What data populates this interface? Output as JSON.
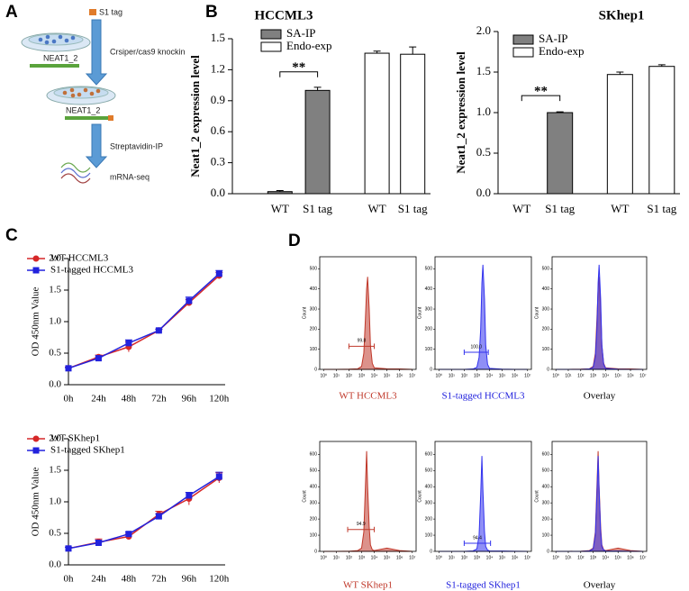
{
  "panel_labels": [
    "A",
    "B",
    "C",
    "D"
  ],
  "diagram": {
    "tag_label": "S1 tag",
    "step1": "Crsiper/cas9 knockin",
    "gene1": "NEAT1_2",
    "gene2": "NEAT1_2",
    "step2": "Streptavidin-IP",
    "step3": "mRNA-seq"
  },
  "chart_data": [
    {
      "type": "bar",
      "title": "HCCML3",
      "ylabel": "Neat1_2 expression level",
      "categories": [
        "WT",
        "S1 tag",
        "WT",
        "S1 tag"
      ],
      "series": [
        {
          "name": "SA-IP",
          "color": "#808080",
          "values": [
            0.02,
            1.0,
            null,
            null
          ],
          "errors": [
            0.01,
            0.03,
            null,
            null
          ]
        },
        {
          "name": "Endo-exp",
          "color": "#ffffff",
          "values": [
            null,
            null,
            1.36,
            1.35
          ],
          "errors": [
            null,
            null,
            0.02,
            0.07
          ]
        }
      ],
      "ylim": [
        0,
        1.5
      ],
      "yticks": [
        {
          "value": 0,
          "label": "0.0"
        },
        0.3,
        0.6,
        0.9,
        1.2,
        1.5
      ],
      "annotation": "**"
    },
    {
      "type": "bar",
      "title": "SKhep1",
      "ylabel": "Neat1_2 expression level",
      "categories": [
        "WT",
        "S1 tag",
        "WT",
        "S1 tag"
      ],
      "series": [
        {
          "name": "SA-IP",
          "color": "#808080",
          "values": [
            0.0,
            1.0,
            null,
            null
          ],
          "errors": [
            0.0,
            0.01,
            null,
            null
          ]
        },
        {
          "name": "Endo-exp",
          "color": "#ffffff",
          "values": [
            null,
            null,
            1.47,
            1.57
          ],
          "errors": [
            null,
            null,
            0.03,
            0.02
          ]
        }
      ],
      "ylim": [
        0,
        2
      ],
      "yticks": [
        {
          "value": 0,
          "label": "0.0"
        },
        0.5,
        {
          "value": 1,
          "label": "1.0"
        },
        1.5,
        {
          "value": 2,
          "label": "2.0"
        }
      ],
      "annotation": "**"
    },
    {
      "type": "line",
      "ylabel": "OD 450nm Value",
      "categories": [
        "0h",
        "24h",
        "48h",
        "72h",
        "96h",
        "120h"
      ],
      "series": [
        {
          "name": "WT HCCML3",
          "color": "#d62728",
          "values": [
            0.26,
            0.44,
            0.6,
            0.86,
            1.3,
            1.73
          ],
          "errors": [
            0.02,
            0.03,
            0.08,
            0.02,
            0.05,
            0.05
          ]
        },
        {
          "name": "S1-tagged HCCML3",
          "color": "#2222dd",
          "values": [
            0.26,
            0.42,
            0.66,
            0.86,
            1.33,
            1.76
          ],
          "errors": [
            0.01,
            0.02,
            0.05,
            0.02,
            0.06,
            0.05
          ]
        }
      ],
      "ylim": [
        0,
        2
      ],
      "yticks": [
        {
          "value": 0,
          "label": "0.0"
        },
        0.5,
        {
          "value": 1,
          "label": "1.0"
        },
        1.5,
        {
          "value": 2,
          "label": "2.0"
        }
      ]
    },
    {
      "type": "line",
      "ylabel": "OD 450nm Value",
      "categories": [
        "0h",
        "24h",
        "48h",
        "72h",
        "96h",
        "120h"
      ],
      "series": [
        {
          "name": "WT SKhep1",
          "color": "#d62728",
          "values": [
            0.26,
            0.36,
            0.45,
            0.8,
            1.05,
            1.38
          ],
          "errors": [
            0.02,
            0.05,
            0.04,
            0.05,
            0.1,
            0.08
          ]
        },
        {
          "name": "S1-tagged SKhep1",
          "color": "#2222dd",
          "values": [
            0.26,
            0.35,
            0.49,
            0.77,
            1.1,
            1.4
          ],
          "errors": [
            0.02,
            0.04,
            0.03,
            0.04,
            0.05,
            0.07
          ]
        }
      ],
      "ylim": [
        0,
        2
      ],
      "yticks": [
        {
          "value": 0,
          "label": "0.0"
        },
        0.5,
        {
          "value": 1,
          "label": "1.0"
        },
        1.5,
        {
          "value": 2,
          "label": "2.0"
        }
      ]
    },
    {
      "type": "flow",
      "caption": "WT HCCML3",
      "caption_color": "#c0392b",
      "ylabel": "Count",
      "xscale": "log",
      "x": [
        1,
        10,
        100,
        500,
        1000,
        1500,
        2000,
        2500,
        3000,
        4000,
        5000,
        7000,
        10000,
        100000,
        1000000,
        10000000
      ],
      "series": [
        {
          "color": "#c0392b",
          "values": [
            0,
            0,
            1,
            3,
            15,
            80,
            250,
            400,
            460,
            300,
            120,
            30,
            8,
            3,
            2,
            0
          ]
        }
      ],
      "gate": {
        "label": "99.8",
        "range": [
          100,
          10000
        ],
        "level": 115
      },
      "xlim": [
        0.5,
        20000000
      ],
      "xticks": [
        {
          "value": 1,
          "label": "10⁰"
        },
        {
          "value": 10,
          "label": "10¹"
        },
        {
          "value": 100,
          "label": "10²"
        },
        {
          "value": 1000,
          "label": "10³"
        },
        {
          "value": 10000,
          "label": "10⁴"
        },
        {
          "value": 100000,
          "label": "10⁵"
        },
        {
          "value": 1000000,
          "label": "10⁶"
        },
        {
          "value": 10000000,
          "label": "10⁷"
        }
      ],
      "ylim": [
        0,
        560
      ],
      "yticks": [
        0,
        100,
        200,
        300,
        400,
        500
      ]
    },
    {
      "type": "flow",
      "caption": "S1-tagged HCCML3",
      "caption_color": "#2222dd",
      "ylabel": "Count",
      "xscale": "log",
      "x": [
        1,
        10,
        100,
        500,
        1000,
        1500,
        2000,
        2500,
        3000,
        4000,
        5000,
        7000,
        10000,
        100000,
        1000000,
        10000000
      ],
      "series": [
        {
          "color": "#3333ee",
          "values": [
            0,
            0,
            0,
            2,
            10,
            60,
            200,
            430,
            520,
            350,
            120,
            25,
            5,
            1,
            0,
            0
          ]
        }
      ],
      "gate": {
        "label": "100.0",
        "range": [
          100,
          8000
        ],
        "level": 85
      },
      "xlim": [
        0.5,
        20000000
      ],
      "xticks": [
        {
          "value": 1,
          "label": "10⁰"
        },
        {
          "value": 10,
          "label": "10¹"
        },
        {
          "value": 100,
          "label": "10²"
        },
        {
          "value": 1000,
          "label": "10³"
        },
        {
          "value": 10000,
          "label": "10⁴"
        },
        {
          "value": 100000,
          "label": "10⁵"
        },
        {
          "value": 1000000,
          "label": "10⁶"
        },
        {
          "value": 10000000,
          "label": "10⁷"
        }
      ],
      "ylim": [
        0,
        560
      ],
      "yticks": [
        0,
        100,
        200,
        300,
        400,
        500
      ]
    },
    {
      "type": "flow",
      "caption": "Overlay",
      "caption_color": "#000000",
      "ylabel": "Count",
      "xscale": "log",
      "x": [
        1,
        10,
        100,
        500,
        1000,
        1500,
        2000,
        2500,
        3000,
        4000,
        5000,
        7000,
        10000,
        100000,
        1000000,
        10000000
      ],
      "series": [
        {
          "color": "#c0392b",
          "values": [
            0,
            0,
            1,
            3,
            15,
            80,
            250,
            400,
            460,
            300,
            120,
            30,
            8,
            3,
            2,
            0
          ]
        },
        {
          "color": "#3333ee",
          "values": [
            0,
            0,
            0,
            2,
            10,
            60,
            200,
            430,
            520,
            350,
            120,
            25,
            5,
            1,
            0,
            0
          ]
        }
      ],
      "xlim": [
        0.5,
        20000000
      ],
      "xticks": [
        {
          "value": 1,
          "label": "10⁰"
        },
        {
          "value": 10,
          "label": "10¹"
        },
        {
          "value": 100,
          "label": "10²"
        },
        {
          "value": 1000,
          "label": "10³"
        },
        {
          "value": 10000,
          "label": "10⁴"
        },
        {
          "value": 100000,
          "label": "10⁵"
        },
        {
          "value": 1000000,
          "label": "10⁶"
        },
        {
          "value": 10000000,
          "label": "10⁷"
        }
      ],
      "ylim": [
        0,
        560
      ],
      "yticks": [
        0,
        100,
        200,
        300,
        400,
        500
      ]
    },
    {
      "type": "flow",
      "caption": "WT SKhep1",
      "caption_color": "#c0392b",
      "ylabel": "Count",
      "xscale": "log",
      "x": [
        1,
        10,
        100,
        500,
        1000,
        1500,
        2000,
        2500,
        3000,
        4000,
        5000,
        7000,
        10000,
        100000,
        1000000,
        10000000
      ],
      "series": [
        {
          "color": "#c0392b",
          "values": [
            0,
            0,
            1,
            5,
            20,
            120,
            400,
            620,
            400,
            150,
            40,
            10,
            5,
            20,
            5,
            0
          ]
        }
      ],
      "gate": {
        "label": "94.9",
        "range": [
          80,
          10000
        ],
        "level": 135
      },
      "xlim": [
        0.5,
        20000000
      ],
      "xticks": [
        {
          "value": 1,
          "label": "10⁰"
        },
        {
          "value": 10,
          "label": "10¹"
        },
        {
          "value": 100,
          "label": "10²"
        },
        {
          "value": 1000,
          "label": "10³"
        },
        {
          "value": 10000,
          "label": "10⁴"
        },
        {
          "value": 100000,
          "label": "10⁵"
        },
        {
          "value": 1000000,
          "label": "10⁶"
        },
        {
          "value": 10000000,
          "label": "10⁷"
        }
      ],
      "ylim": [
        0,
        680
      ],
      "yticks": [
        0,
        100,
        200,
        300,
        400,
        500,
        600
      ]
    },
    {
      "type": "flow",
      "caption": "S1-tagged SKhep1",
      "caption_color": "#2222dd",
      "ylabel": "Count",
      "xscale": "log",
      "x": [
        1,
        10,
        100,
        500,
        1000,
        1500,
        2000,
        2500,
        3000,
        4000,
        5000,
        7000,
        10000,
        100000,
        1000000,
        10000000
      ],
      "series": [
        {
          "color": "#3333ee",
          "values": [
            0,
            0,
            0,
            3,
            15,
            100,
            350,
            590,
            380,
            120,
            30,
            8,
            3,
            2,
            1,
            0
          ]
        }
      ],
      "gate": {
        "label": "94.4",
        "range": [
          100,
          12000
        ],
        "level": 50
      },
      "xlim": [
        0.5,
        20000000
      ],
      "xticks": [
        {
          "value": 1,
          "label": "10⁰"
        },
        {
          "value": 10,
          "label": "10¹"
        },
        {
          "value": 100,
          "label": "10²"
        },
        {
          "value": 1000,
          "label": "10³"
        },
        {
          "value": 10000,
          "label": "10⁴"
        },
        {
          "value": 100000,
          "label": "10⁵"
        },
        {
          "value": 1000000,
          "label": "10⁶"
        },
        {
          "value": 10000000,
          "label": "10⁷"
        }
      ],
      "ylim": [
        0,
        680
      ],
      "yticks": [
        0,
        100,
        200,
        300,
        400,
        500,
        600
      ]
    },
    {
      "type": "flow",
      "caption": "Overlay",
      "caption_color": "#000000",
      "ylabel": "Count",
      "xscale": "log",
      "x": [
        1,
        10,
        100,
        500,
        1000,
        1500,
        2000,
        2500,
        3000,
        4000,
        5000,
        7000,
        10000,
        100000,
        1000000,
        10000000
      ],
      "series": [
        {
          "color": "#c0392b",
          "values": [
            0,
            0,
            1,
            5,
            20,
            120,
            400,
            620,
            400,
            150,
            40,
            10,
            5,
            20,
            5,
            0
          ]
        },
        {
          "color": "#3333ee",
          "values": [
            0,
            0,
            0,
            3,
            15,
            100,
            350,
            590,
            380,
            120,
            30,
            8,
            3,
            2,
            1,
            0
          ]
        }
      ],
      "xlim": [
        0.5,
        20000000
      ],
      "xticks": [
        {
          "value": 1,
          "label": "10⁰"
        },
        {
          "value": 10,
          "label": "10¹"
        },
        {
          "value": 100,
          "label": "10²"
        },
        {
          "value": 1000,
          "label": "10³"
        },
        {
          "value": 10000,
          "label": "10⁴"
        },
        {
          "value": 100000,
          "label": "10⁵"
        },
        {
          "value": 1000000,
          "label": "10⁶"
        },
        {
          "value": 10000000,
          "label": "10⁷"
        }
      ],
      "ylim": [
        0,
        680
      ],
      "yticks": [
        0,
        100,
        200,
        300,
        400,
        500,
        600
      ]
    }
  ]
}
